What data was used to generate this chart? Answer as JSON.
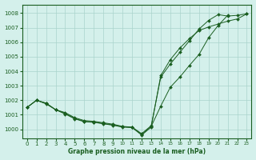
{
  "title": "Graphe pression niveau de la mer (hPa)",
  "bg_color": "#d4f0eb",
  "grid_color": "#aad4cc",
  "line_color": "#1a5e20",
  "xlim": [
    -0.5,
    23.5
  ],
  "ylim": [
    999.4,
    1008.6
  ],
  "yticks": [
    1000,
    1001,
    1002,
    1003,
    1004,
    1005,
    1006,
    1007,
    1008
  ],
  "xticks": [
    0,
    1,
    2,
    3,
    4,
    5,
    6,
    7,
    8,
    9,
    10,
    11,
    12,
    13,
    14,
    15,
    16,
    17,
    18,
    19,
    20,
    21,
    22,
    23
  ],
  "series": [
    {
      "x": [
        0,
        1,
        2,
        3,
        4,
        5,
        6,
        7,
        8,
        9,
        10,
        11,
        12,
        13,
        14,
        15,
        16,
        17,
        18,
        19,
        20,
        21,
        22,
        23
      ],
      "y": [
        1001.5,
        1002.0,
        1001.8,
        1001.35,
        1001.15,
        1000.8,
        1000.6,
        1000.55,
        1000.45,
        1000.35,
        1000.2,
        1000.15,
        999.7,
        1000.25,
        1003.6,
        1004.5,
        1005.3,
        1006.1,
        1006.9,
        1007.5,
        1007.9,
        1007.8,
        1007.85,
        1007.95
      ]
    },
    {
      "x": [
        0,
        1,
        2,
        3,
        4,
        5,
        6,
        7,
        8,
        9,
        10,
        11,
        12,
        13,
        14,
        15,
        16,
        17,
        18,
        19,
        20,
        21
      ],
      "y": [
        1001.5,
        1002.0,
        1001.8,
        1001.35,
        1001.1,
        1000.75,
        1000.55,
        1000.5,
        1000.4,
        1000.3,
        1000.18,
        1000.13,
        999.65,
        1000.2,
        1001.6,
        1002.9,
        1003.6,
        1004.4,
        1005.15,
        1006.3,
        1007.15,
        1007.85
      ]
    },
    {
      "x": [
        0,
        1,
        2,
        3,
        4,
        5,
        6,
        7,
        8,
        9,
        10,
        11,
        12,
        13,
        14,
        15,
        16,
        17,
        18,
        19,
        20,
        21,
        22,
        23
      ],
      "y": [
        1001.5,
        1002.0,
        1001.75,
        1001.35,
        1001.05,
        1000.72,
        1000.52,
        1000.48,
        1000.38,
        1000.28,
        1000.15,
        1000.12,
        999.6,
        1000.15,
        1003.7,
        1004.8,
        1005.6,
        1006.25,
        1006.8,
        1007.05,
        1007.25,
        1007.45,
        1007.6,
        1007.95
      ]
    }
  ]
}
